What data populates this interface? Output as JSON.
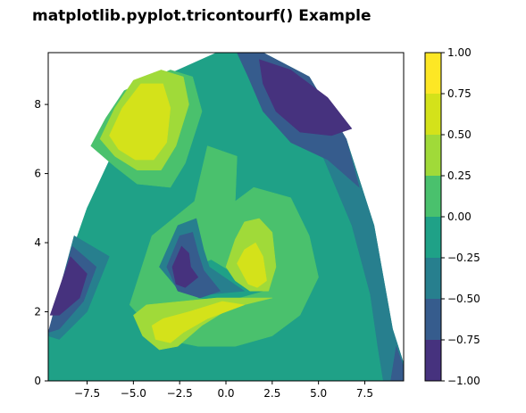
{
  "chart_data": {
    "type": "tricontourf",
    "title": "matplotlib.pyplot.tricontourf() Example",
    "xlabel": "",
    "ylabel": "",
    "xlim": [
      -9.6,
      9.6
    ],
    "ylim": [
      0,
      9.5
    ],
    "x_ticks": [
      -7.5,
      -5.0,
      -2.5,
      0.0,
      2.5,
      5.0,
      7.5
    ],
    "x_tick_labels": [
      "−7.5",
      "−5.0",
      "−2.5",
      "0.0",
      "2.5",
      "5.0",
      "7.5"
    ],
    "y_ticks": [
      0,
      2,
      4,
      6,
      8
    ],
    "y_tick_labels": [
      "0",
      "2",
      "4",
      "6",
      "8"
    ],
    "colorbar": {
      "range": [
        -1.0,
        1.0
      ],
      "levels": [
        -1.0,
        -0.75,
        -0.5,
        -0.25,
        0.0,
        0.25,
        0.5,
        0.75,
        1.0
      ],
      "tick_labels": [
        "−1.00",
        "−0.75",
        "−0.50",
        "−0.25",
        "0.00",
        "0.25",
        "0.50",
        "0.75",
        "1.00"
      ],
      "colormap": "viridis",
      "colors": [
        "#46327e",
        "#365c8d",
        "#277f8e",
        "#1fa187",
        "#4ac16d",
        "#a0da39",
        "#d4e21a",
        "#fde725"
      ]
    },
    "grid": false,
    "regions": [
      {
        "level": 3,
        "points": [
          [
            -9.6,
            0
          ],
          [
            9.6,
            0
          ],
          [
            9.6,
            0.5
          ],
          [
            9.0,
            1.5
          ],
          [
            8.0,
            4.5
          ],
          [
            6.5,
            7.0
          ],
          [
            4.5,
            8.8
          ],
          [
            2.0,
            9.5
          ],
          [
            -0.5,
            9.5
          ],
          [
            -3.0,
            8.9
          ],
          [
            -5.5,
            7.3
          ],
          [
            -7.5,
            5.0
          ],
          [
            -8.8,
            3.0
          ],
          [
            -9.6,
            1.3
          ]
        ]
      },
      {
        "level": 2,
        "points": [
          [
            9.6,
            0
          ],
          [
            9.6,
            0.5
          ],
          [
            9.0,
            1.5
          ],
          [
            8.0,
            4.5
          ],
          [
            6.5,
            7.0
          ],
          [
            4.5,
            8.8
          ],
          [
            2.0,
            9.5
          ],
          [
            0.6,
            9.5
          ],
          [
            3.0,
            8.2
          ],
          [
            5.0,
            6.8
          ],
          [
            6.8,
            4.5
          ],
          [
            7.8,
            2.5
          ],
          [
            8.2,
            1.0
          ],
          [
            8.5,
            0
          ]
        ]
      },
      {
        "level": 1,
        "points": [
          [
            0.6,
            9.5
          ],
          [
            2.0,
            9.5
          ],
          [
            4.5,
            8.8
          ],
          [
            6.5,
            7.0
          ],
          [
            7.2,
            5.6
          ],
          [
            5.5,
            6.4
          ],
          [
            3.5,
            6.9
          ],
          [
            2.0,
            7.8
          ],
          [
            1.2,
            8.8
          ]
        ]
      },
      {
        "level": 1,
        "points": [
          [
            9.6,
            0
          ],
          [
            9.6,
            0.4
          ],
          [
            9.2,
            1.0
          ],
          [
            8.9,
            0
          ]
        ]
      },
      {
        "level": 0,
        "points": [
          [
            1.8,
            9.3
          ],
          [
            3.5,
            9.0
          ],
          [
            5.5,
            8.2
          ],
          [
            6.8,
            7.3
          ],
          [
            5.7,
            7.1
          ],
          [
            4.0,
            7.2
          ],
          [
            2.7,
            7.8
          ],
          [
            2.0,
            8.6
          ]
        ]
      },
      {
        "level": 2,
        "points": [
          [
            -9.6,
            1.3
          ],
          [
            -8.8,
            3.0
          ],
          [
            -8.2,
            4.2
          ],
          [
            -6.3,
            3.6
          ],
          [
            -7.5,
            2.0
          ],
          [
            -9.0,
            1.2
          ]
        ]
      },
      {
        "level": 1,
        "points": [
          [
            -9.6,
            1.4
          ],
          [
            -8.8,
            3.0
          ],
          [
            -8.3,
            3.9
          ],
          [
            -7.0,
            3.3
          ],
          [
            -7.7,
            2.3
          ],
          [
            -9.0,
            1.5
          ]
        ]
      },
      {
        "level": 0,
        "points": [
          [
            -9.5,
            1.9
          ],
          [
            -8.8,
            3.0
          ],
          [
            -8.4,
            3.6
          ],
          [
            -7.5,
            3.1
          ],
          [
            -7.9,
            2.4
          ],
          [
            -9.0,
            1.9
          ]
        ]
      },
      {
        "level": 4,
        "points": [
          [
            -7.3,
            6.8
          ],
          [
            -6.5,
            7.6
          ],
          [
            -5.5,
            8.4
          ],
          [
            -3.0,
            9.0
          ],
          [
            -1.8,
            8.8
          ],
          [
            -1.3,
            7.8
          ],
          [
            -2.2,
            6.3
          ],
          [
            -3.0,
            5.6
          ],
          [
            -4.8,
            5.7
          ],
          [
            -6.0,
            6.2
          ]
        ]
      },
      {
        "level": 5,
        "points": [
          [
            -6.8,
            7.0
          ],
          [
            -6.0,
            7.9
          ],
          [
            -5.0,
            8.7
          ],
          [
            -3.5,
            9.0
          ],
          [
            -2.3,
            8.8
          ],
          [
            -2.0,
            8.0
          ],
          [
            -2.7,
            6.8
          ],
          [
            -3.5,
            6.1
          ],
          [
            -4.8,
            6.1
          ],
          [
            -6.0,
            6.5
          ]
        ]
      },
      {
        "level": 6,
        "points": [
          [
            -6.3,
            7.1
          ],
          [
            -5.6,
            7.9
          ],
          [
            -4.6,
            8.6
          ],
          [
            -3.4,
            8.6
          ],
          [
            -3.0,
            7.9
          ],
          [
            -3.2,
            6.9
          ],
          [
            -3.9,
            6.4
          ],
          [
            -4.9,
            6.4
          ],
          [
            -5.8,
            6.7
          ]
        ]
      },
      {
        "level": 4,
        "points": [
          [
            -4.0,
            4.2
          ],
          [
            -1.7,
            5.2
          ],
          [
            -1.0,
            6.8
          ],
          [
            0.6,
            6.5
          ],
          [
            0.5,
            5.2
          ],
          [
            1.5,
            5.6
          ],
          [
            3.5,
            5.3
          ],
          [
            4.5,
            4.2
          ],
          [
            5.0,
            3.0
          ],
          [
            4.0,
            1.9
          ],
          [
            2.5,
            1.3
          ],
          [
            0.5,
            1.0
          ],
          [
            -1.5,
            1.0
          ],
          [
            -3.3,
            1.2
          ],
          [
            -4.2,
            1.6
          ],
          [
            -5.2,
            2.2
          ]
        ]
      },
      {
        "level": 3,
        "points": [
          [
            -2.0,
            3.2
          ],
          [
            -0.8,
            3.5
          ],
          [
            2.0,
            2.6
          ],
          [
            0.0,
            2.3
          ],
          [
            -1.5,
            2.4
          ]
        ]
      },
      {
        "level": 5,
        "points": [
          [
            -5.0,
            1.9
          ],
          [
            -4.3,
            2.2
          ],
          [
            -2.4,
            2.3
          ],
          [
            -0.5,
            2.4
          ],
          [
            2.5,
            2.4
          ],
          [
            0.2,
            2.1
          ],
          [
            -1.3,
            1.6
          ],
          [
            -2.6,
            1.0
          ],
          [
            -3.6,
            0.9
          ],
          [
            -4.5,
            1.3
          ]
        ]
      },
      {
        "level": 6,
        "points": [
          [
            -4.0,
            1.6
          ],
          [
            -3.4,
            1.8
          ],
          [
            -2.0,
            2.0
          ],
          [
            -0.2,
            2.3
          ],
          [
            1.0,
            2.2
          ],
          [
            -1.0,
            1.8
          ],
          [
            -2.3,
            1.4
          ],
          [
            -3.0,
            1.1
          ],
          [
            -3.8,
            1.2
          ]
        ]
      },
      {
        "level": 5,
        "points": [
          [
            0.0,
            3.3
          ],
          [
            0.5,
            4.1
          ],
          [
            1.0,
            4.6
          ],
          [
            1.8,
            4.7
          ],
          [
            2.5,
            4.3
          ],
          [
            2.7,
            3.3
          ],
          [
            2.3,
            2.6
          ],
          [
            1.3,
            2.6
          ],
          [
            0.5,
            2.9
          ]
        ]
      },
      {
        "level": 6,
        "points": [
          [
            0.6,
            3.4
          ],
          [
            1.0,
            3.8
          ],
          [
            1.6,
            4.0
          ],
          [
            2.0,
            3.6
          ],
          [
            2.2,
            2.9
          ],
          [
            1.7,
            2.7
          ],
          [
            1.2,
            2.8
          ]
        ]
      },
      {
        "level": 2,
        "points": [
          [
            -3.6,
            3.3
          ],
          [
            -2.6,
            4.5
          ],
          [
            -1.6,
            4.7
          ],
          [
            -1.2,
            3.8
          ],
          [
            -0.9,
            3.3
          ],
          [
            1.0,
            2.6
          ],
          [
            -1.0,
            2.5
          ],
          [
            -2.5,
            2.6
          ]
        ]
      },
      {
        "level": 1,
        "points": [
          [
            -3.2,
            3.3
          ],
          [
            -2.5,
            4.2
          ],
          [
            -1.8,
            4.3
          ],
          [
            -1.5,
            3.7
          ],
          [
            -1.2,
            3.2
          ],
          [
            -0.3,
            2.6
          ],
          [
            -1.4,
            2.4
          ],
          [
            -2.6,
            2.6
          ]
        ]
      },
      {
        "level": 0,
        "points": [
          [
            -2.9,
            3.3
          ],
          [
            -2.4,
            3.9
          ],
          [
            -2.0,
            3.7
          ],
          [
            -1.9,
            3.3
          ],
          [
            -1.5,
            3.0
          ],
          [
            -2.2,
            2.7
          ],
          [
            -2.7,
            2.8
          ]
        ]
      }
    ]
  }
}
